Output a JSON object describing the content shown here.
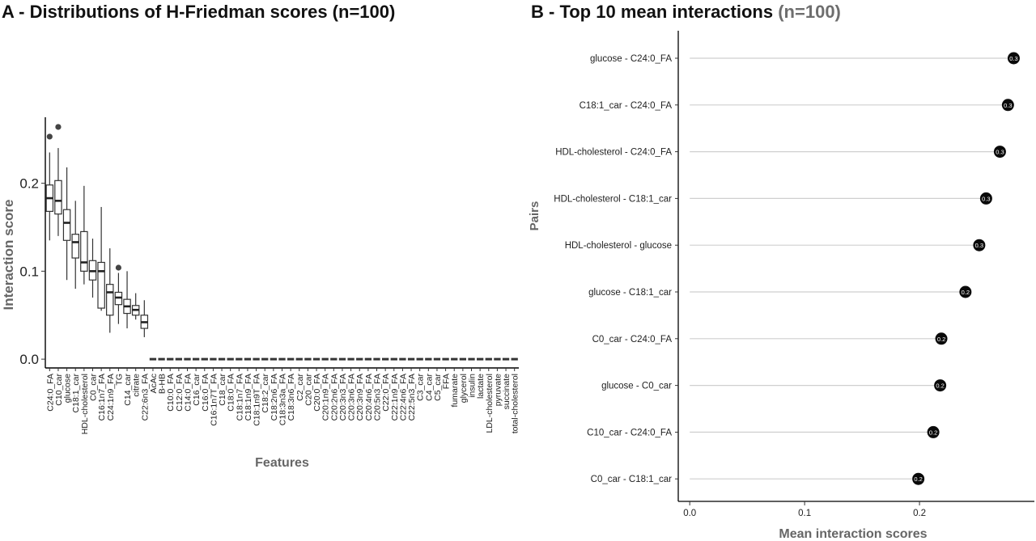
{
  "panel_a": {
    "title": "A - Distributions of H-Friedman scores (n=100)"
  },
  "panel_b": {
    "title_main": "B - Top 10 mean interactions",
    "title_n": "(n=100)"
  },
  "chart_data": [
    {
      "type": "box",
      "xlabel": "Features",
      "ylabel": "Interaction score",
      "ylim": [
        -0.01,
        0.275
      ],
      "yticks": [
        0.0,
        0.1,
        0.2
      ],
      "ytick_labels": [
        "0.0",
        "0.1",
        "0.2"
      ],
      "grid": false,
      "categories": [
        "C24:0_FA",
        "C10_car",
        "glucose",
        "C18:1_car",
        "HDL-cholesterol",
        "C0_car",
        "C16:1n7_FA",
        "C24:1n9_FA",
        "TG",
        "C14_car",
        "citrate",
        "C22:6n3_FA",
        "AcAc",
        "B-HB",
        "C10:0_FA",
        "C12:0_FA",
        "C14:0_FA",
        "C16_car",
        "C16:0_FA",
        "C16:1n7T_FA",
        "C18_car",
        "C18:0_FA",
        "C18:1n7_FA",
        "C18:1n9_FA",
        "C18:1n9T_FA",
        "C18:2_car",
        "C18:2n6_FA",
        "C18:3n3a_FA",
        "C18:3n6_FA",
        "C2_car",
        "C20_car",
        "C20:0_FA",
        "C20:1n9_FA",
        "C20:2n6_FA",
        "C20:3n3_FA",
        "C20:3n6_FA",
        "C20:3n9_FA",
        "C20:4n6_FA",
        "C20:5n3_FA",
        "C22:0_FA",
        "C22:1n9_FA",
        "C22:4n6_FA",
        "C22:5n3_FA",
        "C3_car",
        "C4_car",
        "C5_car",
        "FFA",
        "fumarate",
        "glycerol",
        "insulin",
        "lactate",
        "LDL-cholesterol",
        "pyruvate",
        "succinate",
        "total-cholesterol"
      ],
      "boxes": [
        {
          "min": 0.135,
          "q1": 0.168,
          "median": 0.183,
          "q3": 0.198,
          "max": 0.235,
          "outliers": [
            0.253
          ]
        },
        {
          "min": 0.14,
          "q1": 0.165,
          "median": 0.18,
          "q3": 0.203,
          "max": 0.24,
          "outliers": [
            0.264
          ]
        },
        {
          "min": 0.09,
          "q1": 0.135,
          "median": 0.155,
          "q3": 0.17,
          "max": 0.218
        },
        {
          "min": 0.08,
          "q1": 0.115,
          "median": 0.133,
          "q3": 0.142,
          "max": 0.18
        },
        {
          "min": 0.085,
          "q1": 0.1,
          "median": 0.11,
          "q3": 0.145,
          "max": 0.197
        },
        {
          "min": 0.07,
          "q1": 0.09,
          "median": 0.1,
          "q3": 0.112,
          "max": 0.137
        },
        {
          "min": 0.055,
          "q1": 0.058,
          "median": 0.1,
          "q3": 0.11,
          "max": 0.173
        },
        {
          "min": 0.03,
          "q1": 0.05,
          "median": 0.076,
          "q3": 0.085,
          "max": 0.126
        },
        {
          "min": 0.04,
          "q1": 0.062,
          "median": 0.07,
          "q3": 0.076,
          "max": 0.098,
          "outliers": [
            0.104
          ]
        },
        {
          "min": 0.035,
          "q1": 0.052,
          "median": 0.06,
          "q3": 0.068,
          "max": 0.1
        },
        {
          "min": 0.045,
          "q1": 0.05,
          "median": 0.056,
          "q3": 0.061,
          "max": 0.075
        },
        {
          "min": 0.025,
          "q1": 0.035,
          "median": 0.042,
          "q3": 0.05,
          "max": 0.067
        },
        {
          "zero": true
        },
        {
          "zero": true
        },
        {
          "zero": true
        },
        {
          "zero": true
        },
        {
          "zero": true
        },
        {
          "zero": true
        },
        {
          "zero": true
        },
        {
          "zero": true
        },
        {
          "zero": true
        },
        {
          "zero": true
        },
        {
          "zero": true
        },
        {
          "zero": true
        },
        {
          "zero": true
        },
        {
          "zero": true
        },
        {
          "zero": true
        },
        {
          "zero": true
        },
        {
          "zero": true
        },
        {
          "zero": true
        },
        {
          "zero": true
        },
        {
          "zero": true
        },
        {
          "zero": true
        },
        {
          "zero": true
        },
        {
          "zero": true
        },
        {
          "zero": true
        },
        {
          "zero": true
        },
        {
          "zero": true
        },
        {
          "zero": true
        },
        {
          "zero": true
        },
        {
          "zero": true
        },
        {
          "zero": true
        },
        {
          "zero": true
        },
        {
          "zero": true
        },
        {
          "zero": true
        },
        {
          "zero": true
        },
        {
          "zero": true
        },
        {
          "zero": true
        },
        {
          "zero": true
        },
        {
          "zero": true
        },
        {
          "zero": true
        },
        {
          "zero": true
        },
        {
          "zero": true
        },
        {
          "zero": true
        },
        {
          "zero": true
        }
      ]
    },
    {
      "type": "lollipop",
      "xlabel": "Mean interaction scores",
      "ylabel": "Pairs",
      "xlim": [
        -0.01,
        0.3
      ],
      "xticks": [
        0.0,
        0.1,
        0.2
      ],
      "xtick_labels": [
        "0.0",
        "0.1",
        "0.2"
      ],
      "grid": false,
      "categories": [
        "glucose - C24:0_FA",
        "C18:1_car - C24:0_FA",
        "HDL-cholesterol - C24:0_FA",
        "HDL-cholesterol - C18:1_car",
        "HDL-cholesterol - glucose",
        "glucose - C18:1_car",
        "C0_car - C24:0_FA",
        "glucose - C0_car",
        "C10_car - C24:0_FA",
        "C0_car - C18:1_car"
      ],
      "values": [
        0.282,
        0.277,
        0.27,
        0.258,
        0.252,
        0.24,
        0.219,
        0.218,
        0.212,
        0.199
      ],
      "point_labels": [
        "0.3",
        "0.3",
        "0.3",
        "0.3",
        "0.3",
        "0.2",
        "0.2",
        "0.2",
        "0.2",
        "0.2"
      ]
    }
  ]
}
